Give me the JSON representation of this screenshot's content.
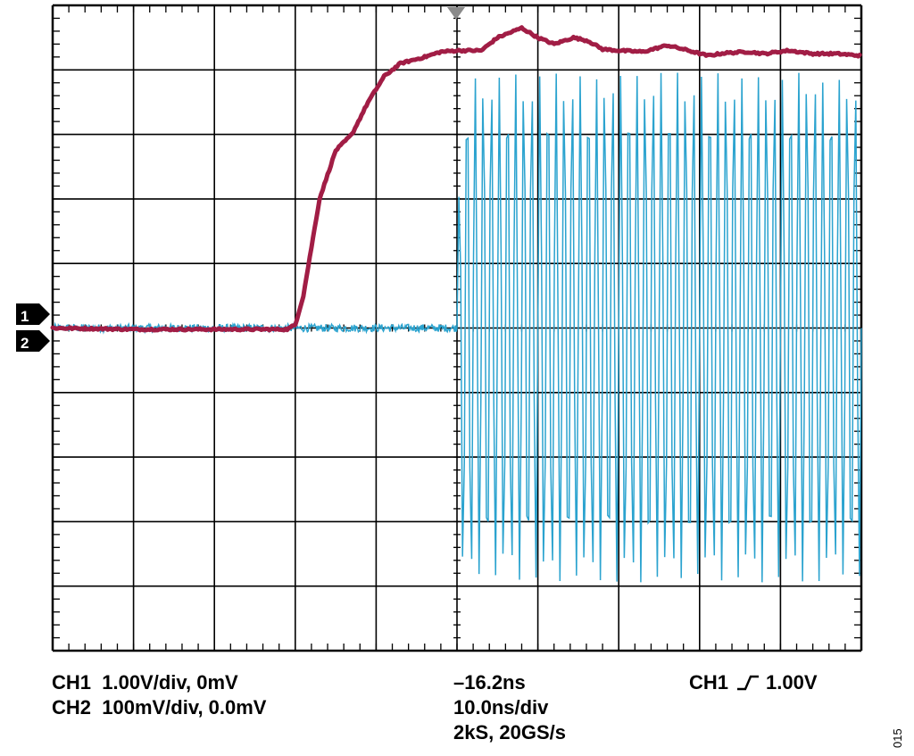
{
  "readouts": {
    "ch1": "CH1  1.00V/div, 0mV",
    "ch2": "CH2  100mV/div, 0.0mV",
    "delay": "–16.2ns",
    "timebase": "10.0ns/div",
    "sample": "2kS, 20GS/s",
    "trigger_source": "CH1",
    "trigger_level": "1.00V"
  },
  "markers": {
    "ch1": "1",
    "ch2": "2"
  },
  "figure_id": "015",
  "chart_data": {
    "type": "line",
    "grid": true,
    "divisions": {
      "horizontal": 10,
      "vertical": 10
    },
    "xlim": [
      -66.2,
      33.8
    ],
    "xunit": "ns",
    "series": [
      {
        "name": "CH1",
        "color": "#A11D45",
        "volts_per_div": 1.0,
        "x": [
          -66.2,
          -56.2,
          -46.2,
          -41.2,
          -37.2,
          -36.2,
          -35.2,
          -33.2,
          -31.2,
          -29.2,
          -27.2,
          -25.2,
          -23.2,
          -20.2,
          -18.2,
          -16.2,
          -13.2,
          -11.2,
          -8.2,
          -6.2,
          -4.2,
          -1.8,
          0.0,
          1.8,
          3.8,
          6.8,
          9.8,
          11.8,
          14.8,
          16.8,
          19.8,
          21.8,
          24.8,
          27.8,
          30.8,
          33.8
        ],
        "y": [
          0.0,
          -0.02,
          -0.02,
          -0.02,
          -0.02,
          0.05,
          0.5,
          2.0,
          2.75,
          3.0,
          3.5,
          3.9,
          4.1,
          4.2,
          4.28,
          4.3,
          4.3,
          4.5,
          4.65,
          4.5,
          4.4,
          4.5,
          4.45,
          4.32,
          4.3,
          4.28,
          4.38,
          4.32,
          4.22,
          4.26,
          4.28,
          4.25,
          4.3,
          4.25,
          4.25,
          4.22
        ],
        "annotation": "after about 11 ns the trace settles near 4.25 V with small ringing"
      },
      {
        "name": "CH2",
        "color": "#2BA3CF",
        "volts_per_div": 0.1,
        "x_start": -16.2,
        "baseline": 0.0,
        "amplitude": 0.4,
        "period_ns": 1.0,
        "description": "flat at 0 mV until -16.2 ns, then a dense oscillation of about ±400 mV to the right edge"
      }
    ],
    "trigger": {
      "source": "CH1",
      "edge": "rising",
      "level_v": 1.0
    }
  }
}
